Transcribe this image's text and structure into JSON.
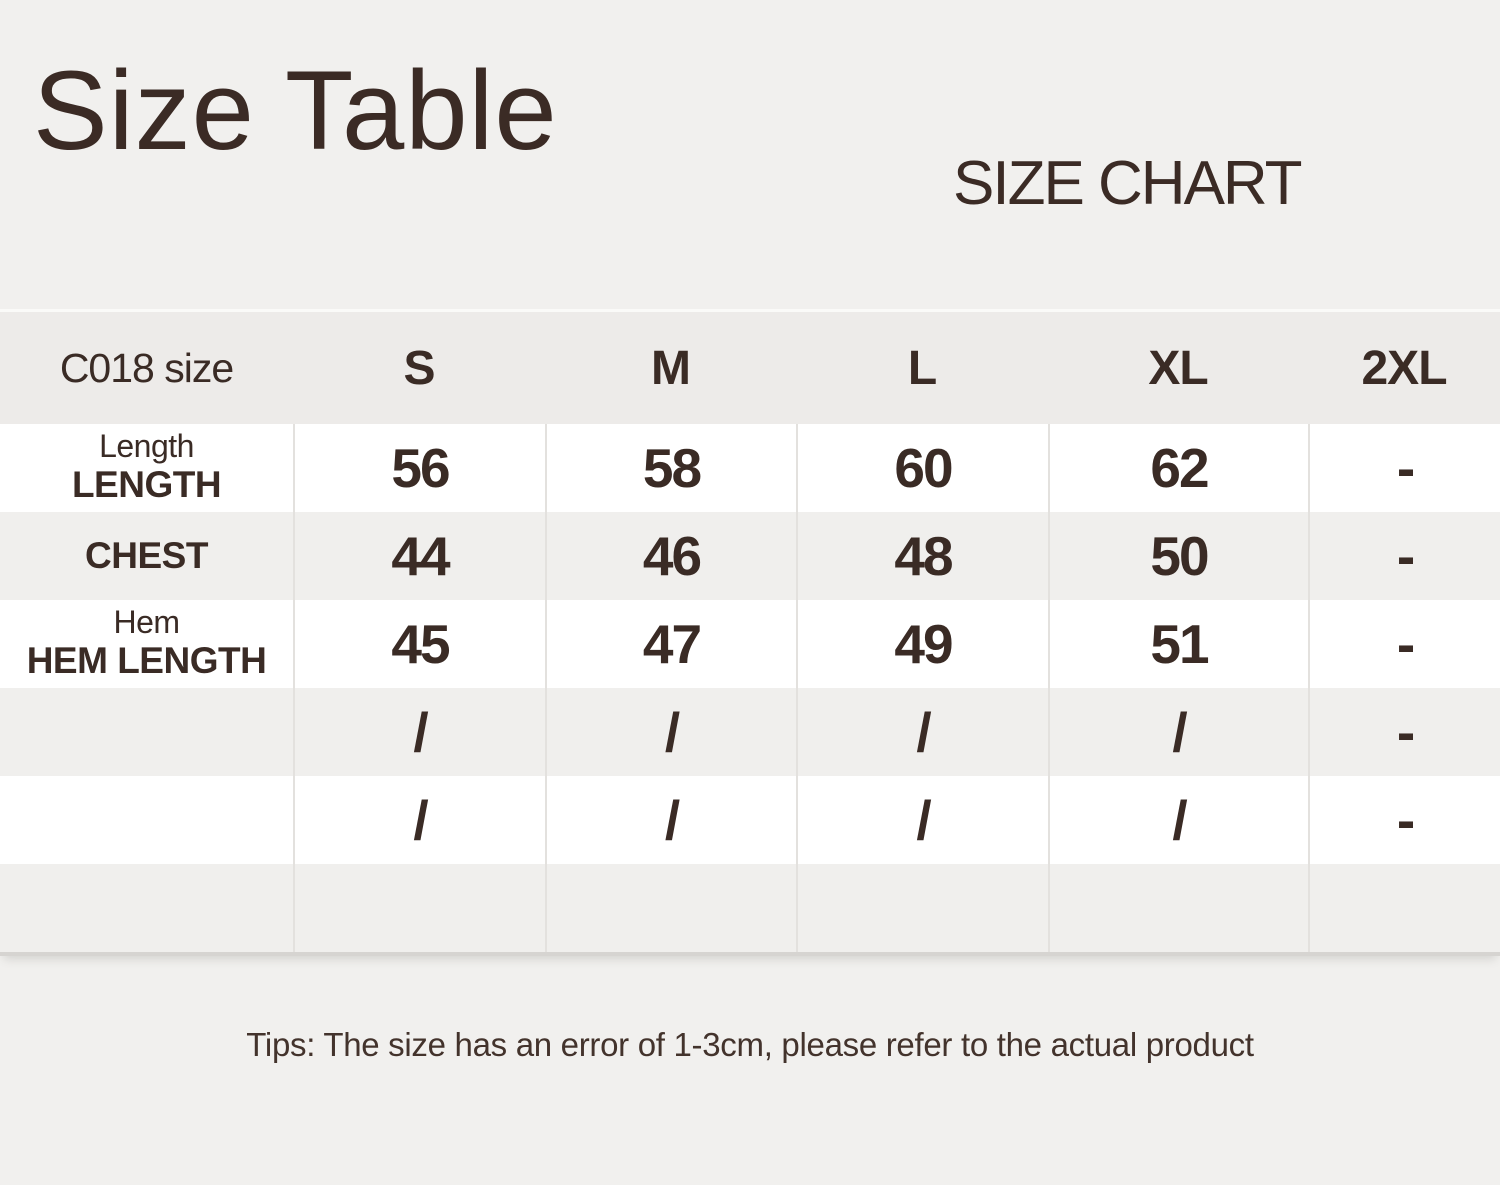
{
  "chart_data": {
    "type": "table",
    "title": "Size Table",
    "subtitle": "SIZE CHART",
    "columns": [
      "C018 size",
      "S",
      "M",
      "L",
      "XL",
      "2XL"
    ],
    "rows": [
      {
        "label_top": "Length",
        "label_bottom": "LENGTH",
        "values": [
          "56",
          "58",
          "60",
          "62",
          "-"
        ]
      },
      {
        "label_top": "",
        "label_bottom": "CHEST",
        "values": [
          "44",
          "46",
          "48",
          "50",
          "-"
        ]
      },
      {
        "label_top": "Hem",
        "label_bottom": "HEM LENGTH",
        "values": [
          "45",
          "47",
          "49",
          "51",
          "-"
        ]
      },
      {
        "label_top": "",
        "label_bottom": "",
        "values": [
          "/",
          "/",
          "/",
          "/",
          "-"
        ]
      },
      {
        "label_top": "",
        "label_bottom": "",
        "values": [
          "/",
          "/",
          "/",
          "/",
          "-"
        ]
      },
      {
        "label_top": "",
        "label_bottom": "",
        "values": [
          "",
          "",
          "",
          "",
          ""
        ]
      }
    ],
    "note": "Tips: The size has an error of 1-3cm, please refer to the actual product",
    "layout": {
      "unit": "cm",
      "grid": "alternating-row-shading",
      "legend_position": "none"
    }
  },
  "colors": {
    "background": "#f1f0ee",
    "header_row": "#edebe9",
    "row_gray": "#f0efed",
    "row_white": "#ffffff",
    "text": "#3a2b25",
    "separator": "#e3e1de",
    "table_bottom_border": "#d6d4d1"
  }
}
